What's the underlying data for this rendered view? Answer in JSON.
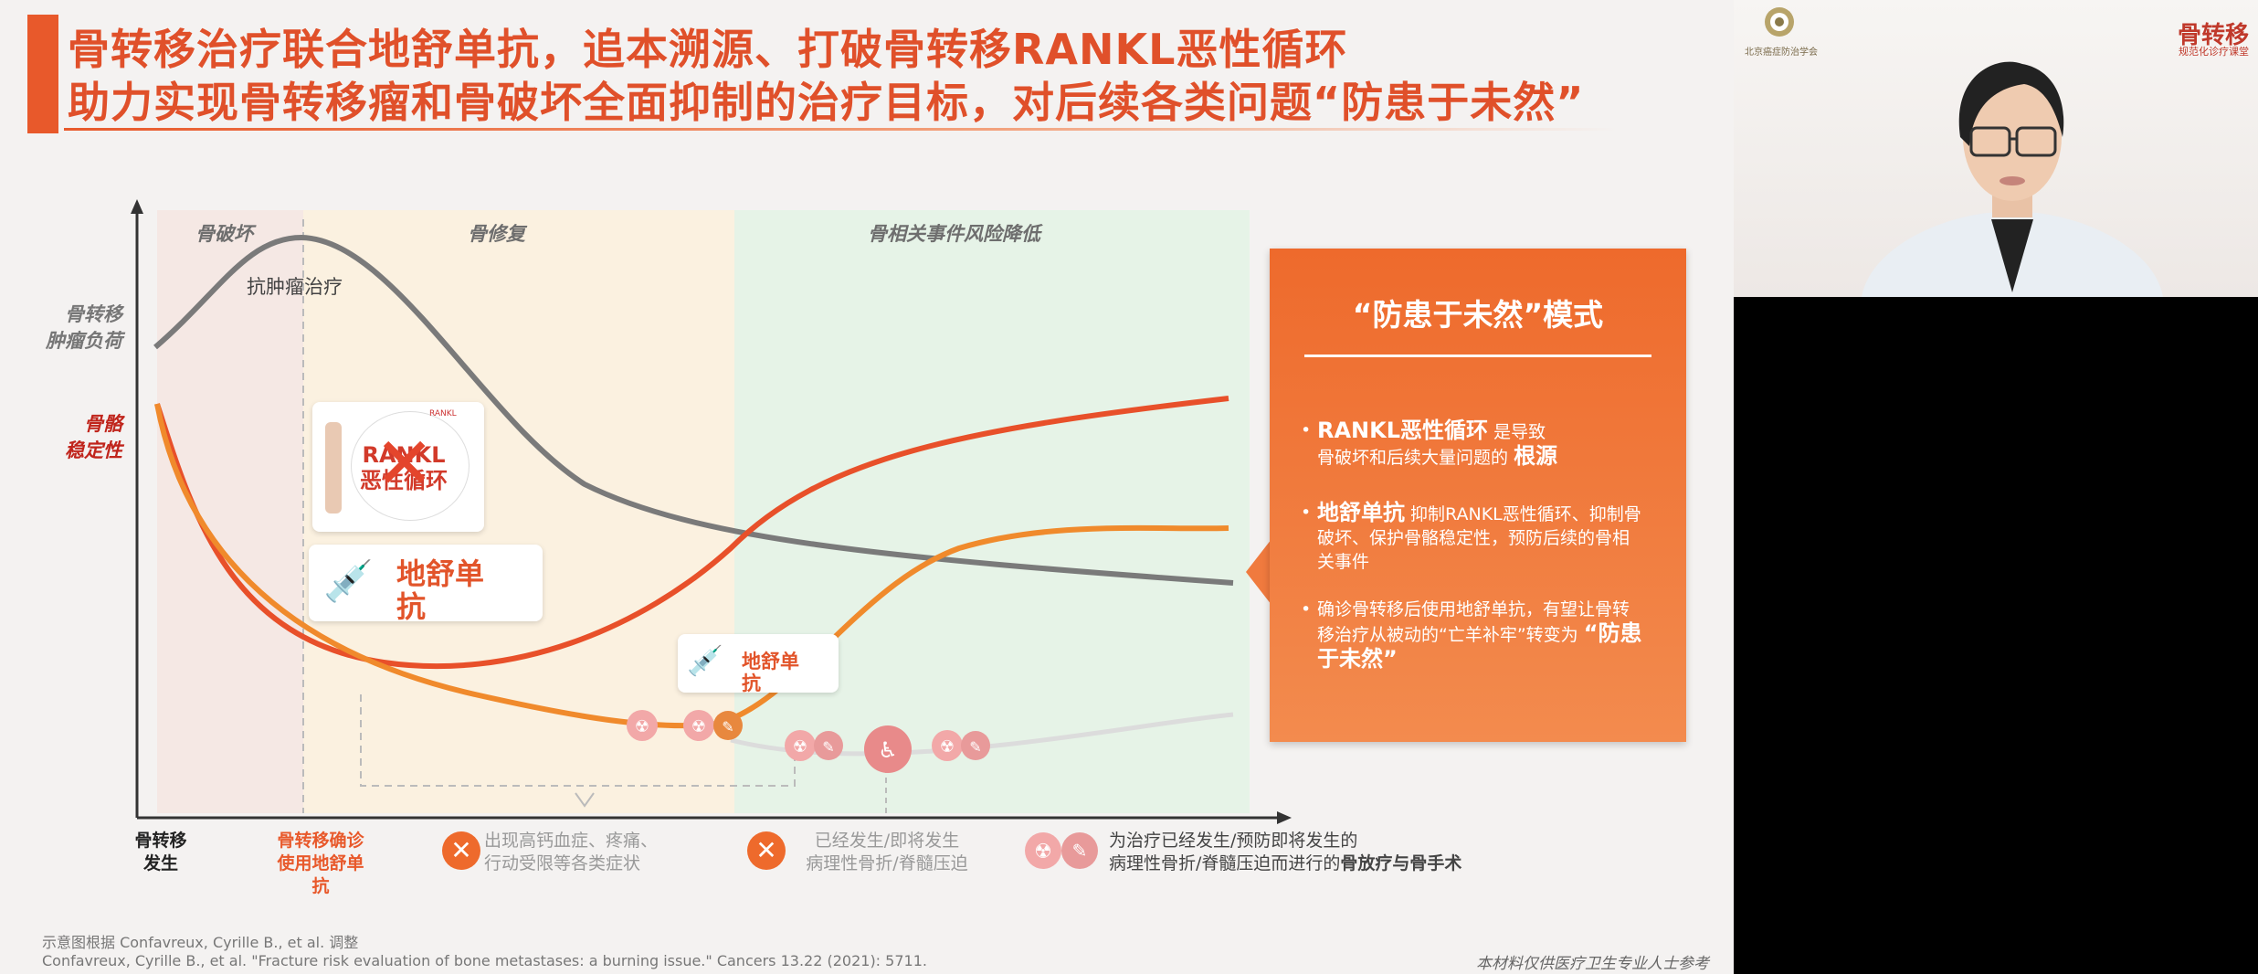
{
  "slide": {
    "title_line1": "骨转移治疗联合地舒单抗，追本溯源、打破骨转移RANKL恶性循环",
    "title_line2": "助力实现骨转移瘤和骨破坏全面抑制的治疗目标，对后续各类问题“防患于未然”",
    "y_labels": {
      "tumor_burden": [
        "骨转移",
        "肿瘤负荷"
      ],
      "bone_stability": [
        "骨骼",
        "稳定性"
      ]
    },
    "phases": {
      "destruction": "骨破坏",
      "repair": "骨修复",
      "risk_reduction": "骨相关事件风险降低"
    },
    "annotation_antitumor": "抗肿瘤治疗",
    "rankl_image_text": [
      "RANKL",
      "恶性循环"
    ],
    "rankl_image_caption": "RANKL",
    "callout_large": [
      "地舒单",
      "抗"
    ],
    "callout_small": [
      "地舒单",
      "抗"
    ],
    "x_labels": {
      "onset": [
        "骨转移",
        "发生"
      ],
      "diagnosis": [
        "骨转移确诊",
        "使用地舒单",
        "抗"
      ],
      "symptoms": [
        "出现高钙血症、疼痛、",
        "行动受限等各类症状"
      ],
      "fracture": [
        "已经发生/即将发生",
        "病理性骨折/脊髓压迫"
      ],
      "treatment": [
        "为治疗已经发生/预防即将发生的",
        "病理性骨折/脊髓压迫而进行的"
      ],
      "treatment_bold": "骨放疗与骨手术"
    },
    "model": {
      "title": "“防患于未然”模式",
      "bullet1": {
        "big": "RANKL恶性循环",
        "small1": "是导致",
        "small2": "骨破坏和后续大量问题的",
        "big2": "根源"
      },
      "bullet2": {
        "big": "地舒单抗",
        "small": "抑制RANKL恶性循环、抑制骨破坏、保护骨骼稳定性，预防后续的骨相关事件"
      },
      "bullet3": {
        "small1": "确诊骨转移后使用地舒单抗，有望让骨转移治疗从被动的“亡羊补牢”转变为",
        "big": "“防患于未然”"
      }
    },
    "footnote1": "示意图根据 Confavreux, Cyrille B., et al. 调整",
    "footnote2": "Confavreux, Cyrille B., et al. \"Fracture risk evaluation of bone metastases: a burning issue.\" Cancers 13.22 (2021): 5711.",
    "disclaimer": "本材料仅供医疗卫生专业人士参考"
  },
  "video": {
    "logo_text": "北京癌症防治学会",
    "program_title": "骨转移",
    "program_sub": "规范化诊疗课堂"
  },
  "colors": {
    "accent": "#e8592b",
    "gray_curve": "#777777",
    "red_curve": "#e8502a",
    "orange_curve": "#f08a2c",
    "light_curve": "#dddddd"
  },
  "icons": [
    "cross-icon",
    "radiation-icon",
    "scalpel-icon",
    "syringe-icon",
    "x-mark-icon",
    "patient-icon"
  ]
}
